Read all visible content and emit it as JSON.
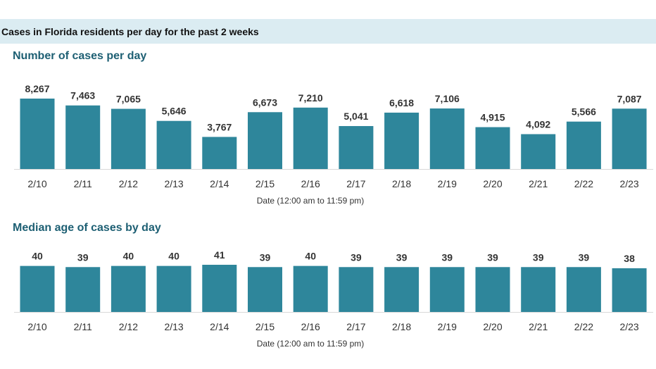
{
  "header": {
    "title": "Cases in Florida residents per day for the past 2 weeks"
  },
  "colors": {
    "bar": "#2e869b",
    "header_bg": "#dbecf2",
    "title": "#1d5f73"
  },
  "chart_data": [
    {
      "type": "bar",
      "title": "Number of cases per day",
      "xlabel": "Date (12:00 am to 11:59 pm)",
      "ylabel": "",
      "categories": [
        "2/10",
        "2/11",
        "2/12",
        "2/13",
        "2/14",
        "2/15",
        "2/16",
        "2/17",
        "2/18",
        "2/19",
        "2/20",
        "2/21",
        "2/22",
        "2/23"
      ],
      "values": [
        8267,
        7463,
        7065,
        5646,
        3767,
        6673,
        7210,
        5041,
        6618,
        7106,
        4915,
        4092,
        5566,
        7087
      ],
      "value_labels": [
        "8,267",
        "7,463",
        "7,065",
        "5,646",
        "3,767",
        "6,673",
        "7,210",
        "5,041",
        "6,618",
        "7,106",
        "4,915",
        "4,092",
        "5,566",
        "7,087"
      ],
      "ylim": [
        0,
        8267
      ],
      "grid": false
    },
    {
      "type": "bar",
      "title": "Median age of cases by day",
      "xlabel": "Date (12:00 am to 11:59 pm)",
      "ylabel": "",
      "categories": [
        "2/10",
        "2/11",
        "2/12",
        "2/13",
        "2/14",
        "2/15",
        "2/16",
        "2/17",
        "2/18",
        "2/19",
        "2/20",
        "2/21",
        "2/22",
        "2/23"
      ],
      "values": [
        40,
        39,
        40,
        40,
        41,
        39,
        40,
        39,
        39,
        39,
        39,
        39,
        39,
        38
      ],
      "value_labels": [
        "40",
        "39",
        "40",
        "40",
        "41",
        "39",
        "40",
        "39",
        "39",
        "39",
        "39",
        "39",
        "39",
        "38"
      ],
      "ylim": [
        0,
        41
      ],
      "grid": false
    }
  ]
}
